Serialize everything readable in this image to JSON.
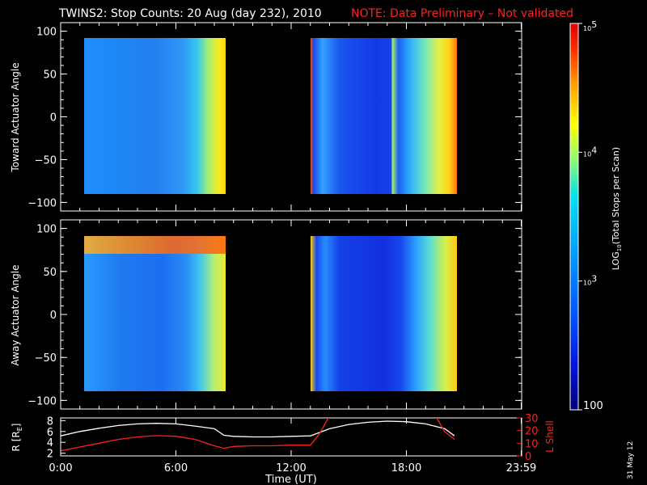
{
  "header": {
    "title": "TWINS2: Stop Counts: 20 Aug (day 232), 2010",
    "note": "NOTE: Data Preliminary – Not validated"
  },
  "footer": {
    "date_stamp": "31 May 12"
  },
  "chart_data": [
    {
      "type": "heatmap",
      "panel": "toward",
      "ylabel": "Toward Actuator Angle",
      "ylim": [
        -110,
        110
      ],
      "yticks": [
        "100",
        "50",
        "0",
        "−50",
        "−100"
      ],
      "ytick_values": [
        100,
        50,
        0,
        -50,
        -100
      ],
      "xlim": [
        0,
        24
      ],
      "data_segments": [
        [
          0.6,
          8.4
        ],
        [
          13.1,
          21.1
        ]
      ],
      "angle_range": [
        -88,
        90
      ]
    },
    {
      "type": "heatmap",
      "panel": "away",
      "ylabel": "Away Actuator Angle",
      "ylim": [
        -110,
        110
      ],
      "yticks": [
        "100",
        "50",
        "0",
        "−50",
        "−100"
      ],
      "ytick_values": [
        100,
        50,
        0,
        -50,
        -100
      ],
      "xlim": [
        0,
        24
      ],
      "data_segments": [
        [
          0.6,
          8.4
        ],
        [
          13.1,
          21.1
        ]
      ],
      "angle_range": [
        -88,
        90
      ]
    },
    {
      "type": "line",
      "panel": "orbit",
      "xlabel": "Time (UT)",
      "xticks": [
        "0:00",
        "6:00",
        "12:00",
        "18:00",
        "23:59"
      ],
      "xtick_values": [
        0,
        6,
        12,
        18,
        23.98
      ],
      "ylabel_left": "R [R",
      "ylabel_left_sub": "E",
      "ylabel_left_end": "]",
      "yticks_left": [
        "2",
        "4",
        "6",
        "8"
      ],
      "ylim_left": [
        1.5,
        8.5
      ],
      "ylabel_right": "L Shell",
      "yticks_right": [
        "0",
        "10",
        "20",
        "30"
      ],
      "ylim_right": [
        0,
        30
      ],
      "series": [
        {
          "axis": "left",
          "color": "#ffffff",
          "x": [
            0,
            1,
            2,
            3,
            4,
            5,
            6,
            7,
            8,
            8.5,
            9,
            10,
            11,
            12,
            13,
            14,
            15,
            16,
            17,
            18,
            19,
            20,
            20.5
          ],
          "y": [
            5.2,
            6.0,
            6.6,
            7.1,
            7.4,
            7.5,
            7.4,
            7.0,
            6.5,
            5.3,
            5.1,
            5.0,
            5.0,
            5.1,
            5.2,
            6.5,
            7.3,
            7.7,
            7.9,
            7.8,
            7.4,
            6.5,
            5.2
          ]
        },
        {
          "axis": "right",
          "color": "#ff2020",
          "x": [
            0,
            1,
            2,
            3,
            4,
            5,
            6,
            7,
            8,
            8.5,
            9,
            10,
            11,
            12,
            13,
            13.5,
            14,
            19.5,
            20,
            20.5
          ],
          "y": [
            4,
            7,
            10,
            13,
            15,
            16,
            15.5,
            13,
            8,
            6,
            7.5,
            8,
            8,
            8.5,
            8.5,
            18,
            32,
            32,
            19,
            13
          ]
        }
      ]
    },
    {
      "type": "colorbar",
      "label": "LOG",
      "label_sub": "10",
      "label_end": "(Total Stops per Scan)",
      "ticks": [
        {
          "base": "10",
          "exp": "5",
          "value": 100000
        },
        {
          "base": "10",
          "exp": "4",
          "value": 10000
        },
        {
          "base": "10",
          "exp": "3",
          "value": 1000
        },
        {
          "base": "100",
          "exp": "",
          "value": 100
        }
      ],
      "range": [
        100,
        100000
      ]
    }
  ]
}
